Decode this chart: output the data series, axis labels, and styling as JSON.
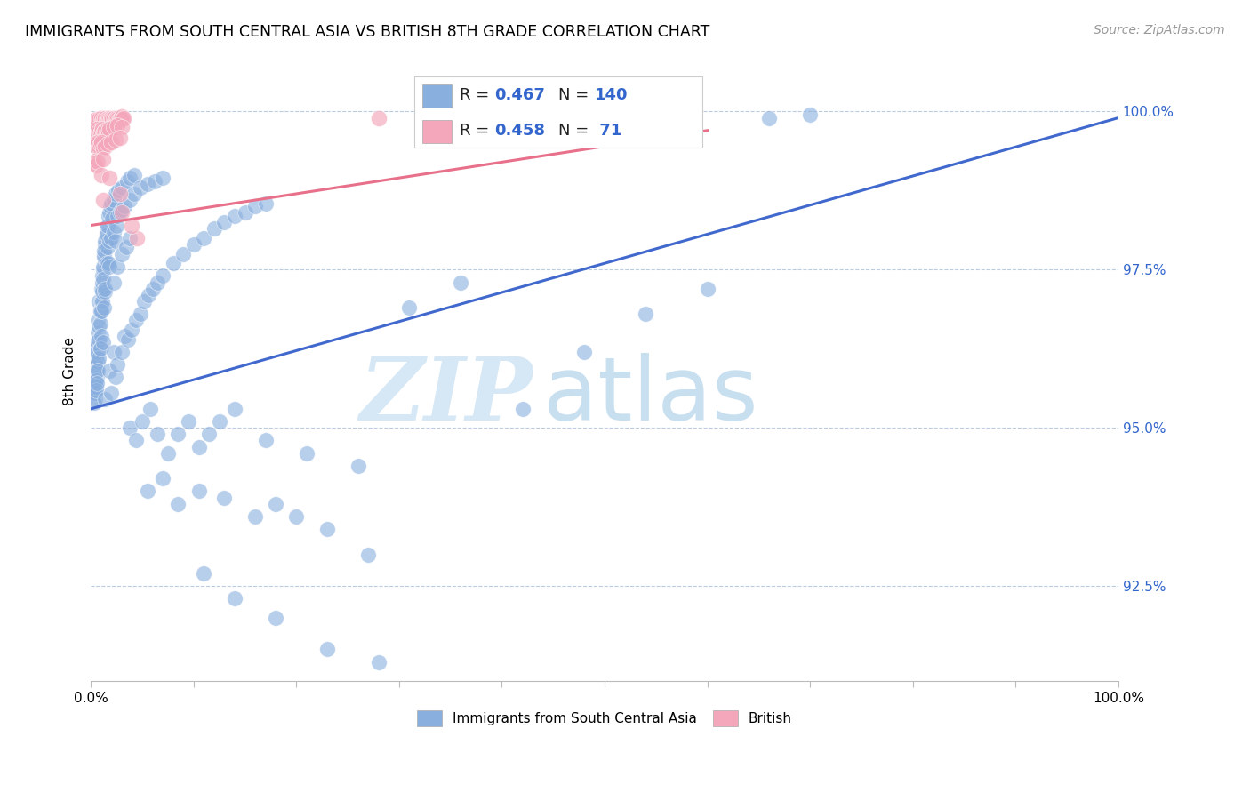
{
  "title": "IMMIGRANTS FROM SOUTH CENTRAL ASIA VS BRITISH 8TH GRADE CORRELATION CHART",
  "source": "Source: ZipAtlas.com",
  "ylabel": "8th Grade",
  "yaxis_labels": [
    "100.0%",
    "97.5%",
    "95.0%",
    "92.5%"
  ],
  "yaxis_values": [
    1.0,
    0.975,
    0.95,
    0.925
  ],
  "xlim": [
    0.0,
    1.0
  ],
  "ylim": [
    0.91,
    1.008
  ],
  "blue_R": 0.467,
  "blue_N": 140,
  "pink_R": 0.458,
  "pink_N": 71,
  "blue_color": "#89AFDF",
  "pink_color": "#F4A7BB",
  "blue_line_color": "#4169CD",
  "pink_line_color": "#E8708A",
  "watermark_zip": "ZIP",
  "watermark_atlas": "atlas",
  "watermark_color": "#D6E8F5",
  "legend_label_blue": "Immigrants from South Central Asia",
  "legend_label_pink": "British",
  "blue_scatter": [
    [
      0.003,
      0.9595
    ],
    [
      0.004,
      0.9575
    ],
    [
      0.003,
      0.9555
    ],
    [
      0.004,
      0.9545
    ],
    [
      0.005,
      0.9625
    ],
    [
      0.005,
      0.961
    ],
    [
      0.004,
      0.96
    ],
    [
      0.005,
      0.959
    ],
    [
      0.006,
      0.958
    ],
    [
      0.005,
      0.9565
    ],
    [
      0.004,
      0.9555
    ],
    [
      0.003,
      0.954
    ],
    [
      0.007,
      0.967
    ],
    [
      0.007,
      0.965
    ],
    [
      0.006,
      0.9635
    ],
    [
      0.006,
      0.962
    ],
    [
      0.007,
      0.9605
    ],
    [
      0.006,
      0.959
    ],
    [
      0.005,
      0.9575
    ],
    [
      0.005,
      0.956
    ],
    [
      0.008,
      0.97
    ],
    [
      0.009,
      0.9685
    ],
    [
      0.008,
      0.966
    ],
    [
      0.008,
      0.964
    ],
    [
      0.009,
      0.9625
    ],
    [
      0.008,
      0.961
    ],
    [
      0.007,
      0.959
    ],
    [
      0.006,
      0.957
    ],
    [
      0.01,
      0.972
    ],
    [
      0.01,
      0.97
    ],
    [
      0.009,
      0.9685
    ],
    [
      0.009,
      0.9665
    ],
    [
      0.01,
      0.9645
    ],
    [
      0.009,
      0.9625
    ],
    [
      0.011,
      0.974
    ],
    [
      0.011,
      0.972
    ],
    [
      0.011,
      0.97
    ],
    [
      0.01,
      0.9685
    ],
    [
      0.012,
      0.975
    ],
    [
      0.011,
      0.973
    ],
    [
      0.011,
      0.9715
    ],
    [
      0.013,
      0.9775
    ],
    [
      0.012,
      0.9755
    ],
    [
      0.012,
      0.9735
    ],
    [
      0.014,
      0.979
    ],
    [
      0.013,
      0.977
    ],
    [
      0.015,
      0.981
    ],
    [
      0.014,
      0.9795
    ],
    [
      0.013,
      0.978
    ],
    [
      0.016,
      0.982
    ],
    [
      0.015,
      0.9805
    ],
    [
      0.017,
      0.9835
    ],
    [
      0.016,
      0.982
    ],
    [
      0.018,
      0.984
    ],
    [
      0.019,
      0.985
    ],
    [
      0.02,
      0.9855
    ],
    [
      0.022,
      0.986
    ],
    [
      0.024,
      0.987
    ],
    [
      0.027,
      0.9875
    ],
    [
      0.03,
      0.988
    ],
    [
      0.035,
      0.989
    ],
    [
      0.038,
      0.9895
    ],
    [
      0.042,
      0.99
    ],
    [
      0.012,
      0.9635
    ],
    [
      0.014,
      0.9715
    ],
    [
      0.013,
      0.969
    ],
    [
      0.015,
      0.976
    ],
    [
      0.014,
      0.972
    ],
    [
      0.016,
      0.9785
    ],
    [
      0.017,
      0.976
    ],
    [
      0.018,
      0.9795
    ],
    [
      0.018,
      0.9755
    ],
    [
      0.02,
      0.98
    ],
    [
      0.021,
      0.983
    ],
    [
      0.022,
      0.981
    ],
    [
      0.024,
      0.9795
    ],
    [
      0.025,
      0.982
    ],
    [
      0.026,
      0.9835
    ],
    [
      0.028,
      0.984
    ],
    [
      0.03,
      0.9845
    ],
    [
      0.033,
      0.985
    ],
    [
      0.038,
      0.986
    ],
    [
      0.042,
      0.987
    ],
    [
      0.048,
      0.988
    ],
    [
      0.055,
      0.9885
    ],
    [
      0.062,
      0.989
    ],
    [
      0.07,
      0.9895
    ],
    [
      0.022,
      0.973
    ],
    [
      0.026,
      0.9755
    ],
    [
      0.03,
      0.9775
    ],
    [
      0.034,
      0.9785
    ],
    [
      0.038,
      0.98
    ],
    [
      0.014,
      0.9545
    ],
    [
      0.018,
      0.959
    ],
    [
      0.02,
      0.9555
    ],
    [
      0.022,
      0.962
    ],
    [
      0.024,
      0.958
    ],
    [
      0.026,
      0.96
    ],
    [
      0.03,
      0.962
    ],
    [
      0.033,
      0.9645
    ],
    [
      0.036,
      0.964
    ],
    [
      0.04,
      0.9655
    ],
    [
      0.044,
      0.967
    ],
    [
      0.048,
      0.968
    ],
    [
      0.052,
      0.97
    ],
    [
      0.056,
      0.971
    ],
    [
      0.06,
      0.972
    ],
    [
      0.065,
      0.973
    ],
    [
      0.07,
      0.974
    ],
    [
      0.08,
      0.976
    ],
    [
      0.09,
      0.9775
    ],
    [
      0.1,
      0.979
    ],
    [
      0.11,
      0.98
    ],
    [
      0.12,
      0.9815
    ],
    [
      0.13,
      0.9825
    ],
    [
      0.14,
      0.9835
    ],
    [
      0.15,
      0.984
    ],
    [
      0.16,
      0.985
    ],
    [
      0.17,
      0.9855
    ],
    [
      0.038,
      0.95
    ],
    [
      0.044,
      0.948
    ],
    [
      0.05,
      0.951
    ],
    [
      0.058,
      0.953
    ],
    [
      0.065,
      0.949
    ],
    [
      0.075,
      0.946
    ],
    [
      0.085,
      0.949
    ],
    [
      0.095,
      0.951
    ],
    [
      0.105,
      0.947
    ],
    [
      0.115,
      0.949
    ],
    [
      0.125,
      0.951
    ],
    [
      0.14,
      0.953
    ],
    [
      0.17,
      0.948
    ],
    [
      0.21,
      0.946
    ],
    [
      0.26,
      0.944
    ],
    [
      0.055,
      0.94
    ],
    [
      0.07,
      0.942
    ],
    [
      0.085,
      0.938
    ],
    [
      0.105,
      0.94
    ],
    [
      0.13,
      0.939
    ],
    [
      0.16,
      0.936
    ],
    [
      0.18,
      0.938
    ],
    [
      0.2,
      0.936
    ],
    [
      0.23,
      0.934
    ],
    [
      0.27,
      0.93
    ],
    [
      0.11,
      0.927
    ],
    [
      0.14,
      0.923
    ],
    [
      0.18,
      0.92
    ],
    [
      0.23,
      0.915
    ],
    [
      0.28,
      0.913
    ],
    [
      0.42,
      0.953
    ],
    [
      0.48,
      0.962
    ],
    [
      0.54,
      0.968
    ],
    [
      0.6,
      0.972
    ],
    [
      0.66,
      0.999
    ],
    [
      0.7,
      0.9995
    ],
    [
      0.31,
      0.969
    ],
    [
      0.36,
      0.973
    ]
  ],
  "pink_scatter": [
    [
      0.003,
      0.9985
    ],
    [
      0.005,
      0.9988
    ],
    [
      0.006,
      0.9985
    ],
    [
      0.008,
      0.9988
    ],
    [
      0.01,
      0.999
    ],
    [
      0.011,
      0.9985
    ],
    [
      0.012,
      0.9988
    ],
    [
      0.013,
      0.9985
    ],
    [
      0.014,
      0.999
    ],
    [
      0.015,
      0.9988
    ],
    [
      0.016,
      0.9985
    ],
    [
      0.017,
      0.999
    ],
    [
      0.018,
      0.9988
    ],
    [
      0.019,
      0.9985
    ],
    [
      0.02,
      0.999
    ],
    [
      0.021,
      0.9988
    ],
    [
      0.022,
      0.999
    ],
    [
      0.023,
      0.9985
    ],
    [
      0.024,
      0.9988
    ],
    [
      0.025,
      0.999
    ],
    [
      0.026,
      0.9988
    ],
    [
      0.027,
      0.9985
    ],
    [
      0.028,
      0.9988
    ],
    [
      0.029,
      0.999
    ],
    [
      0.03,
      0.9992
    ],
    [
      0.031,
      0.9988
    ],
    [
      0.032,
      0.999
    ],
    [
      0.004,
      0.9968
    ],
    [
      0.005,
      0.997
    ],
    [
      0.006,
      0.9972
    ],
    [
      0.007,
      0.9965
    ],
    [
      0.008,
      0.9968
    ],
    [
      0.009,
      0.9965
    ],
    [
      0.01,
      0.9968
    ],
    [
      0.011,
      0.9972
    ],
    [
      0.012,
      0.9965
    ],
    [
      0.013,
      0.9968
    ],
    [
      0.014,
      0.997
    ],
    [
      0.015,
      0.9968
    ],
    [
      0.016,
      0.9972
    ],
    [
      0.017,
      0.9968
    ],
    [
      0.018,
      0.9972
    ],
    [
      0.022,
      0.9975
    ],
    [
      0.026,
      0.9978
    ],
    [
      0.03,
      0.9975
    ],
    [
      0.003,
      0.9948
    ],
    [
      0.004,
      0.995
    ],
    [
      0.005,
      0.9945
    ],
    [
      0.006,
      0.9948
    ],
    [
      0.007,
      0.9952
    ],
    [
      0.008,
      0.9945
    ],
    [
      0.009,
      0.9948
    ],
    [
      0.01,
      0.9952
    ],
    [
      0.012,
      0.9942
    ],
    [
      0.014,
      0.9945
    ],
    [
      0.016,
      0.9948
    ],
    [
      0.02,
      0.9952
    ],
    [
      0.024,
      0.9955
    ],
    [
      0.028,
      0.9958
    ],
    [
      0.003,
      0.9918
    ],
    [
      0.004,
      0.9922
    ],
    [
      0.005,
      0.9915
    ],
    [
      0.007,
      0.992
    ],
    [
      0.012,
      0.9925
    ],
    [
      0.028,
      0.987
    ],
    [
      0.045,
      0.98
    ],
    [
      0.012,
      0.986
    ],
    [
      0.01,
      0.99
    ],
    [
      0.018,
      0.9895
    ],
    [
      0.28,
      0.999
    ],
    [
      0.56,
      0.9985
    ],
    [
      0.03,
      0.984
    ],
    [
      0.04,
      0.982
    ]
  ],
  "blue_trendline_x": [
    0.0,
    1.0
  ],
  "blue_trendline_y": [
    0.953,
    0.999
  ],
  "pink_trendline_x": [
    0.0,
    0.6
  ],
  "pink_trendline_y": [
    0.982,
    0.997
  ]
}
